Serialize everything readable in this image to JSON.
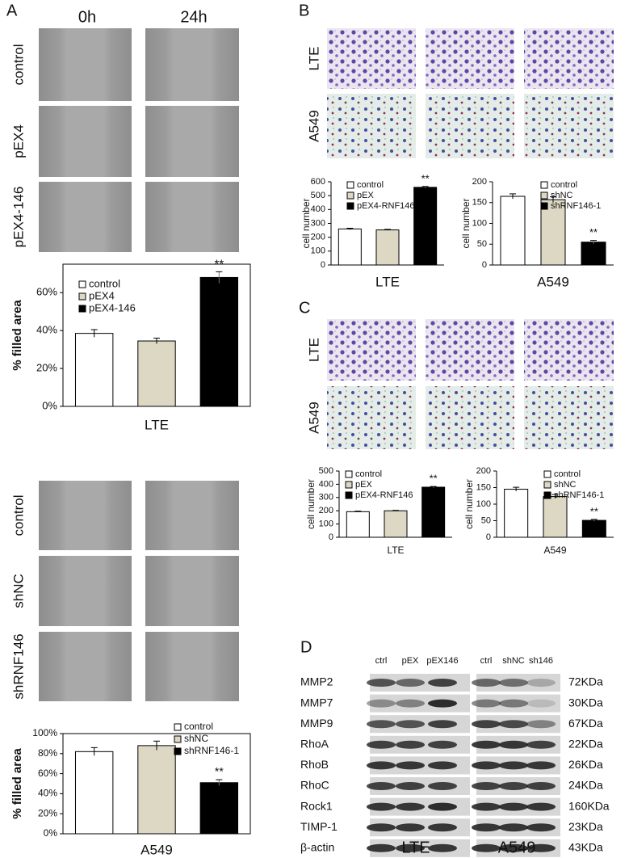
{
  "panel_labels": [
    "A",
    "B",
    "C",
    "D"
  ],
  "panel_a": {
    "time_labels": [
      "0h",
      "24h"
    ],
    "row_labels_top": [
      "control",
      "pEX4",
      "pEX4-146"
    ],
    "row_labels_bottom": [
      "control",
      "shNC",
      "shRNF146"
    ]
  },
  "panel_b": {
    "row_labels": [
      "LTE",
      "A549"
    ]
  },
  "panel_c": {
    "row_labels": [
      "LTE",
      "A549"
    ]
  },
  "panel_d": {
    "lte_lanes": [
      "ctrl",
      "pEX",
      "pEX146"
    ],
    "a549_lanes": [
      "ctrl",
      "shNC",
      "sh146"
    ],
    "proteins": [
      "MMP2",
      "MMP7",
      "MMP9",
      "RhoA",
      "RhoB",
      "RhoC",
      "Rock1",
      "TIMP-1",
      "β-actin"
    ],
    "sizes": [
      "72KDa",
      "30KDa",
      "67KDa",
      "22KDa",
      "26KDa",
      "24KDa",
      "160KDa",
      "23KDa",
      "43KDa"
    ],
    "groups": [
      "LTE",
      "A549"
    ]
  },
  "chart_data": [
    {
      "type": "bar",
      "categories": [
        "LTE"
      ],
      "ylabel": "% filled area",
      "annotation": "**",
      "ylim": [
        0,
        75
      ],
      "yticks": [
        {
          "value": 0,
          "label": "0%"
        },
        {
          "value": 20,
          "label": "20%"
        },
        {
          "value": 40,
          "label": "40%"
        },
        {
          "value": 60,
          "label": "60%"
        }
      ],
      "series": [
        {
          "name": "control",
          "color": "#ffffff",
          "values": [
            38.5
          ],
          "errors": [
            2
          ]
        },
        {
          "name": "pEX4",
          "color": "#ddd8c4",
          "values": [
            34.5
          ],
          "errors": [
            1.5
          ]
        },
        {
          "name": "pEX4-146",
          "color": "#000000",
          "values": [
            68
          ],
          "errors": [
            3
          ]
        }
      ]
    },
    {
      "type": "bar",
      "categories": [
        "A549"
      ],
      "ylabel": "% filled area",
      "annotation": "**",
      "ylim": [
        0,
        100
      ],
      "yticks": [
        {
          "value": 0,
          "label": "0%"
        },
        {
          "value": 20,
          "label": "20%"
        },
        {
          "value": 40,
          "label": "40%"
        },
        {
          "value": 60,
          "label": "60%"
        },
        {
          "value": 80,
          "label": "80%"
        },
        {
          "value": 100,
          "label": "100%"
        }
      ],
      "series": [
        {
          "name": "control",
          "color": "#ffffff",
          "values": [
            82
          ],
          "errors": [
            4
          ]
        },
        {
          "name": "shNC",
          "color": "#ddd8c4",
          "values": [
            88
          ],
          "errors": [
            4.5
          ]
        },
        {
          "name": "shRNF146-1",
          "color": "#000000",
          "values": [
            51
          ],
          "errors": [
            3
          ]
        }
      ]
    },
    {
      "type": "bar",
      "categories": [
        "LTE"
      ],
      "ylabel": "cell number",
      "annotation": "**",
      "ylim": [
        0,
        600
      ],
      "yticks": [
        0,
        100,
        200,
        300,
        400,
        500,
        600
      ],
      "series": [
        {
          "name": "control",
          "color": "#ffffff",
          "values": [
            260
          ],
          "errors": [
            5
          ]
        },
        {
          "name": "pEX",
          "color": "#ddd8c4",
          "values": [
            253
          ],
          "errors": [
            4
          ]
        },
        {
          "name": "pEX4-RNF146",
          "color": "#000000",
          "values": [
            560
          ],
          "errors": [
            6
          ]
        }
      ]
    },
    {
      "type": "bar",
      "categories": [
        "A549"
      ],
      "ylabel": "cell number",
      "annotation": "**",
      "ylim": [
        0,
        200
      ],
      "yticks": [
        0,
        50,
        100,
        150,
        200
      ],
      "series": [
        {
          "name": "control",
          "color": "#ffffff",
          "values": [
            165
          ],
          "errors": [
            6
          ]
        },
        {
          "name": "shNC",
          "color": "#ddd8c4",
          "values": [
            157
          ],
          "errors": [
            7
          ]
        },
        {
          "name": "shRNF146-1",
          "color": "#000000",
          "values": [
            55
          ],
          "errors": [
            4
          ]
        }
      ]
    },
    {
      "type": "bar",
      "categories": [
        "LTE"
      ],
      "ylabel": "cell number",
      "annotation": "**",
      "ylim": [
        0,
        500
      ],
      "yticks": [
        0,
        100,
        200,
        300,
        400,
        500
      ],
      "series": [
        {
          "name": "control",
          "color": "#ffffff",
          "values": [
            193
          ],
          "errors": [
            4
          ]
        },
        {
          "name": "pEX",
          "color": "#ddd8c4",
          "values": [
            200
          ],
          "errors": [
            3
          ]
        },
        {
          "name": "pEX4-RNF146",
          "color": "#000000",
          "values": [
            378
          ],
          "errors": [
            5
          ]
        }
      ]
    },
    {
      "type": "bar",
      "categories": [
        "A549"
      ],
      "ylabel": "cell number",
      "annotation": "**",
      "ylim": [
        0,
        200
      ],
      "yticks": [
        0,
        50,
        100,
        150,
        200
      ],
      "series": [
        {
          "name": "control",
          "color": "#ffffff",
          "values": [
            145
          ],
          "errors": [
            6
          ]
        },
        {
          "name": "shNC",
          "color": "#ddd8c4",
          "values": [
            123
          ],
          "errors": [
            6
          ]
        },
        {
          "name": "shRNF146-1",
          "color": "#000000",
          "values": [
            51
          ],
          "errors": [
            3
          ]
        }
      ]
    }
  ]
}
